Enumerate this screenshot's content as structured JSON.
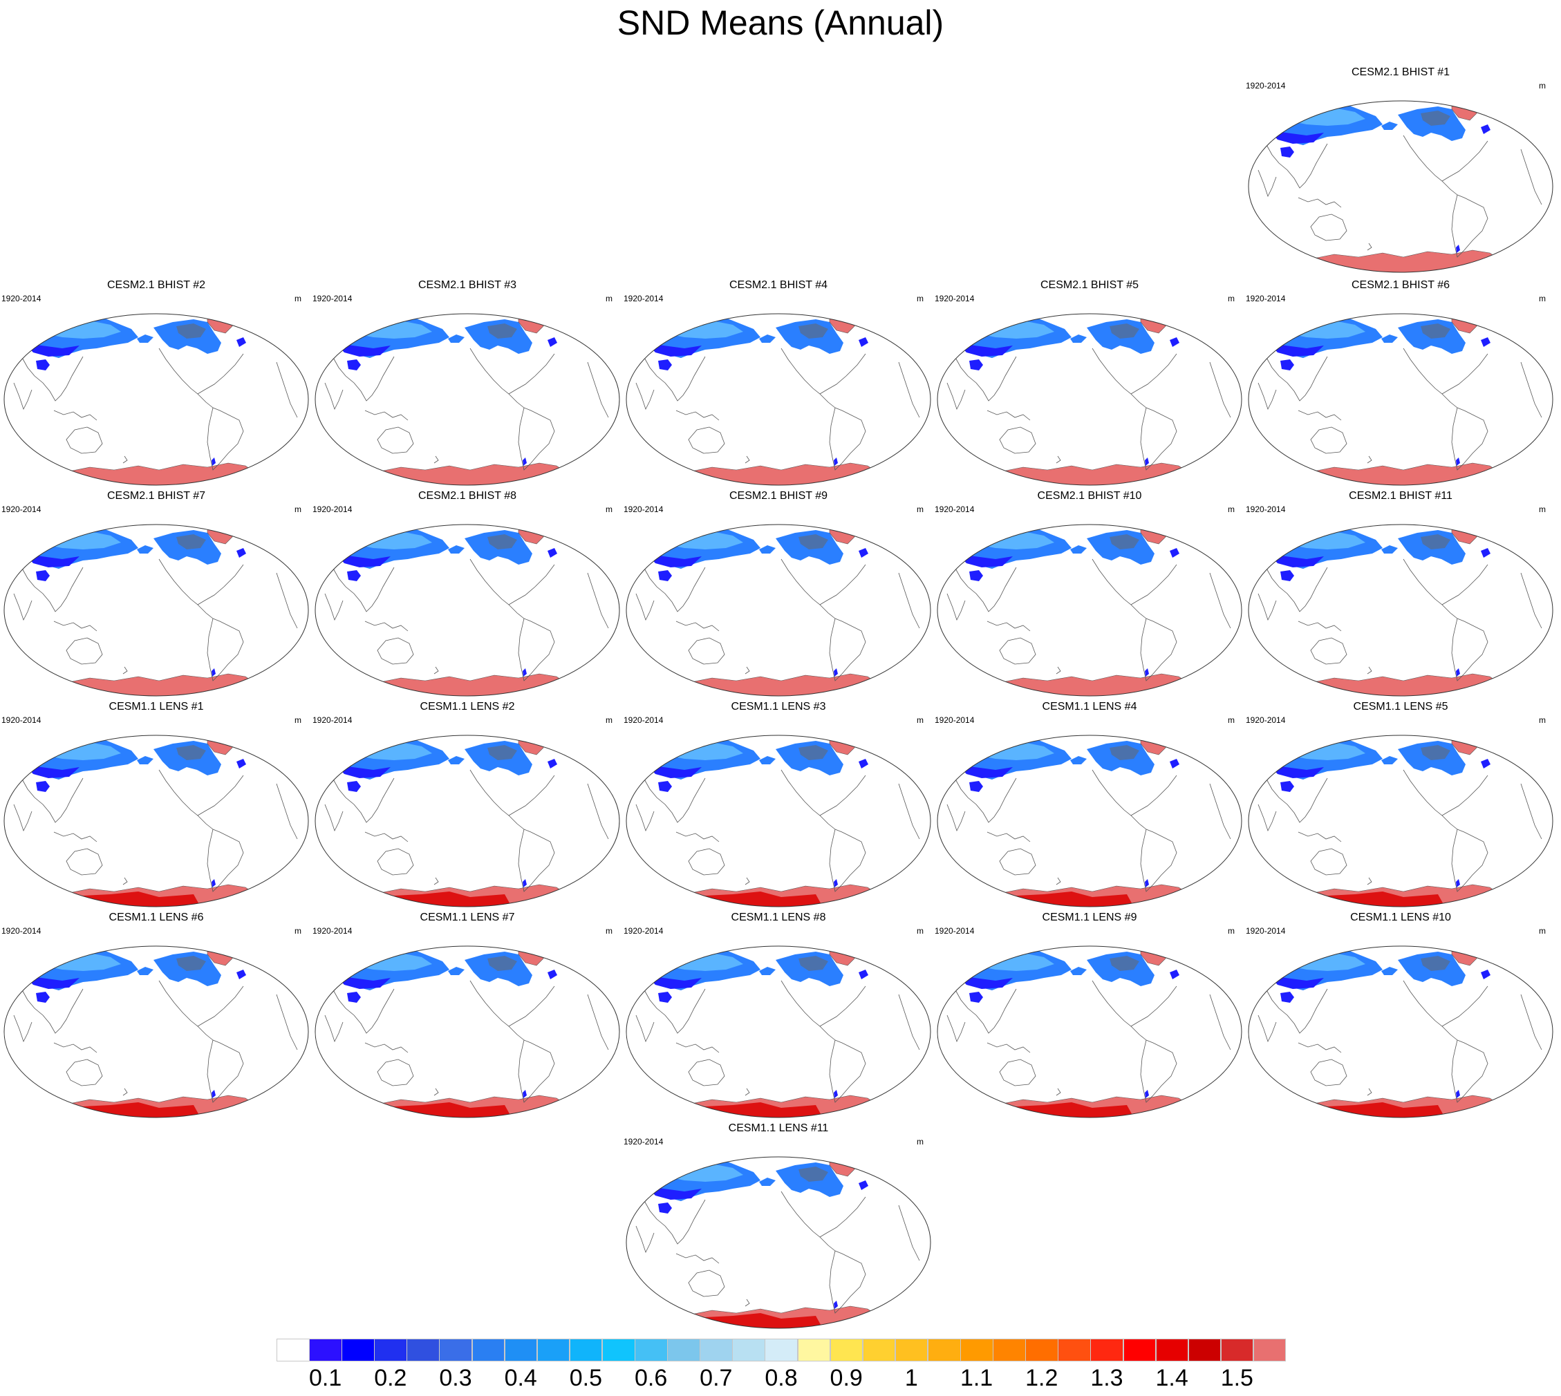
{
  "title": "SND Means (Annual)",
  "panel_period": "1920-2014",
  "panel_units": "m",
  "panels": [
    {
      "title": "CESM2.1 BHIST #1",
      "model": "cesm2"
    },
    {
      "title": "CESM2.1 BHIST #2",
      "model": "cesm2"
    },
    {
      "title": "CESM2.1 BHIST #3",
      "model": "cesm2"
    },
    {
      "title": "CESM2.1 BHIST #4",
      "model": "cesm2"
    },
    {
      "title": "CESM2.1 BHIST #5",
      "model": "cesm2"
    },
    {
      "title": "CESM2.1 BHIST #6",
      "model": "cesm2"
    },
    {
      "title": "CESM2.1 BHIST #7",
      "model": "cesm2"
    },
    {
      "title": "CESM2.1 BHIST #8",
      "model": "cesm2"
    },
    {
      "title": "CESM2.1 BHIST #9",
      "model": "cesm2"
    },
    {
      "title": "CESM2.1 BHIST #10",
      "model": "cesm2"
    },
    {
      "title": "CESM2.1 BHIST #11",
      "model": "cesm2"
    },
    {
      "title": "CESM1.1 LENS #1",
      "model": "cesm1"
    },
    {
      "title": "CESM1.1 LENS #2",
      "model": "cesm1"
    },
    {
      "title": "CESM1.1 LENS #3",
      "model": "cesm1"
    },
    {
      "title": "CESM1.1 LENS #4",
      "model": "cesm1"
    },
    {
      "title": "CESM1.1 LENS #5",
      "model": "cesm1"
    },
    {
      "title": "CESM1.1 LENS #6",
      "model": "cesm1"
    },
    {
      "title": "CESM1.1 LENS #7",
      "model": "cesm1"
    },
    {
      "title": "CESM1.1 LENS #8",
      "model": "cesm1"
    },
    {
      "title": "CESM1.1 LENS #9",
      "model": "cesm1"
    },
    {
      "title": "CESM1.1 LENS #10",
      "model": "cesm1"
    },
    {
      "title": "CESM1.1 LENS #11",
      "model": "cesm1"
    }
  ],
  "map_colors": {
    "ocean": "#ffffff",
    "coastline": "#555555",
    "snow_low": "#1e1eff",
    "snow_mid": "#2a7fff",
    "snow_light": "#5ab4ff",
    "snow_high": "#e87070",
    "snow_max": "#dd1111",
    "snow_dark": "#666666"
  },
  "colorbar": {
    "labels": [
      "0.1",
      "0.2",
      "0.3",
      "0.4",
      "0.5",
      "0.6",
      "0.7",
      "0.8",
      "0.9",
      "1",
      "1.1",
      "1.2",
      "1.3",
      "1.4",
      "1.5"
    ],
    "colors": [
      "#ffffff",
      "#2c10ff",
      "#0000ff",
      "#2030f0",
      "#3050e0",
      "#3a6ee8",
      "#2a7ff2",
      "#1f8ff5",
      "#1aa0f8",
      "#10b4fb",
      "#10c4fd",
      "#45c0f5",
      "#7cc6ec",
      "#9fd3ef",
      "#b8e0f2",
      "#d4ecf8",
      "#fff7a0",
      "#ffe550",
      "#ffd030",
      "#ffc020",
      "#ffae10",
      "#ff9a00",
      "#ff8400",
      "#ff6e00",
      "#ff5010",
      "#ff2810",
      "#ff0000",
      "#e60000",
      "#cc0000",
      "#d82a2a",
      "#e87070"
    ]
  }
}
